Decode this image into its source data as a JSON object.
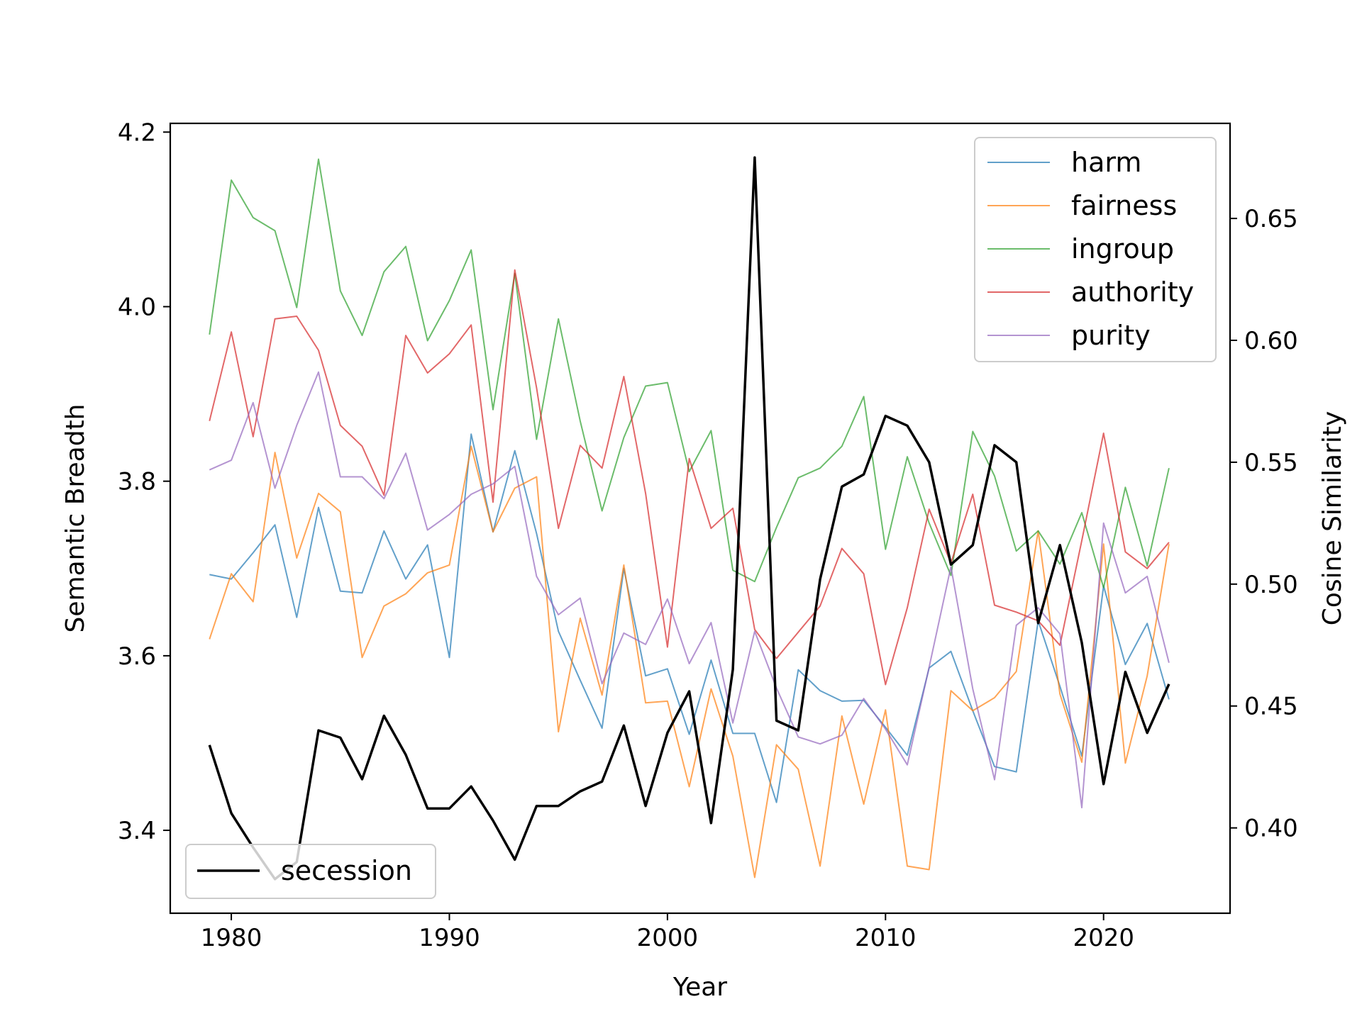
{
  "chart_data": {
    "type": "line",
    "title": "",
    "xlabel": "Year",
    "ylabel_left": "Semantic Breadth",
    "ylabel_right": "Cosine Similarity",
    "xlim": [
      1977.2,
      2025.8
    ],
    "ylim_left": [
      3.305,
      4.21
    ],
    "ylim_right": [
      0.365,
      0.689
    ],
    "xticks": [
      1980,
      1990,
      2000,
      2010,
      2020
    ],
    "yticks_left": [
      3.4,
      3.6,
      3.8,
      4.0,
      4.2
    ],
    "yticks_left_labels": [
      "3.4",
      "3.6",
      "3.8",
      "4.0",
      "4.2"
    ],
    "yticks_right": [
      0.4,
      0.45,
      0.5,
      0.55,
      0.6,
      0.65
    ],
    "yticks_right_labels": [
      "0.40",
      "0.45",
      "0.50",
      "0.55",
      "0.60",
      "0.65"
    ],
    "grid": false,
    "x": [
      1979,
      1980,
      1981,
      1982,
      1983,
      1984,
      1985,
      1986,
      1987,
      1988,
      1989,
      1990,
      1991,
      1992,
      1993,
      1994,
      1995,
      1996,
      1997,
      1998,
      1999,
      2000,
      2001,
      2002,
      2003,
      2004,
      2005,
      2006,
      2007,
      2008,
      2009,
      2010,
      2011,
      2012,
      2013,
      2014,
      2015,
      2016,
      2017,
      2018,
      2019,
      2020,
      2021,
      2022,
      2023
    ],
    "series_left": [
      {
        "name": "harm",
        "color": "#1f77b4",
        "values": [
          3.693,
          3.688,
          3.718,
          3.75,
          3.644,
          3.77,
          3.674,
          3.672,
          3.743,
          3.688,
          3.727,
          3.598,
          3.854,
          3.742,
          3.835,
          3.74,
          3.628,
          3.572,
          3.517,
          3.7,
          3.577,
          3.585,
          3.51,
          3.595,
          3.511,
          3.511,
          3.432,
          3.584,
          3.56,
          3.548,
          3.549,
          3.518,
          3.486,
          3.586,
          3.605,
          3.537,
          3.473,
          3.467,
          3.64,
          3.565,
          3.485,
          3.68,
          3.59,
          3.637,
          3.55
        ]
      },
      {
        "name": "fairness",
        "color": "#ff7f0e",
        "values": [
          3.619,
          3.694,
          3.662,
          3.833,
          3.712,
          3.786,
          3.765,
          3.598,
          3.657,
          3.671,
          3.695,
          3.704,
          3.84,
          3.742,
          3.792,
          3.805,
          3.513,
          3.643,
          3.555,
          3.704,
          3.546,
          3.548,
          3.45,
          3.562,
          3.485,
          3.346,
          3.498,
          3.47,
          3.359,
          3.531,
          3.43,
          3.538,
          3.359,
          3.355,
          3.56,
          3.537,
          3.552,
          3.582,
          3.743,
          3.556,
          3.478,
          3.728,
          3.477,
          3.577,
          3.728
        ]
      },
      {
        "name": "ingroup",
        "color": "#2ca02c",
        "values": [
          3.968,
          4.145,
          4.102,
          4.087,
          3.999,
          4.169,
          4.018,
          3.967,
          4.04,
          4.069,
          3.961,
          4.007,
          4.065,
          3.882,
          4.038,
          3.848,
          3.986,
          3.869,
          3.766,
          3.85,
          3.909,
          3.913,
          3.811,
          3.858,
          3.698,
          3.685,
          3.747,
          3.804,
          3.815,
          3.84,
          3.897,
          3.722,
          3.828,
          3.752,
          3.692,
          3.857,
          3.806,
          3.72,
          3.743,
          3.705,
          3.764,
          3.678,
          3.793,
          3.703,
          3.815
        ]
      },
      {
        "name": "authority",
        "color": "#d62728",
        "values": [
          3.869,
          3.971,
          3.851,
          3.986,
          3.989,
          3.95,
          3.864,
          3.84,
          3.784,
          3.967,
          3.924,
          3.946,
          3.979,
          3.776,
          4.042,
          3.907,
          3.746,
          3.841,
          3.815,
          3.92,
          3.786,
          3.61,
          3.826,
          3.746,
          3.769,
          3.63,
          3.597,
          3.627,
          3.657,
          3.723,
          3.694,
          3.567,
          3.655,
          3.768,
          3.706,
          3.785,
          3.658,
          3.65,
          3.64,
          3.612,
          3.732,
          3.855,
          3.719,
          3.7,
          3.73
        ]
      },
      {
        "name": "purity",
        "color": "#9467bd",
        "values": [
          3.813,
          3.824,
          3.89,
          3.792,
          3.864,
          3.925,
          3.805,
          3.805,
          3.78,
          3.832,
          3.744,
          3.762,
          3.785,
          3.797,
          3.817,
          3.691,
          3.647,
          3.666,
          3.568,
          3.626,
          3.613,
          3.665,
          3.591,
          3.638,
          3.523,
          3.628,
          3.563,
          3.507,
          3.499,
          3.509,
          3.551,
          3.516,
          3.475,
          3.587,
          3.702,
          3.562,
          3.458,
          3.635,
          3.655,
          3.625,
          3.426,
          3.752,
          3.672,
          3.691,
          3.592
        ]
      }
    ],
    "series_right": [
      {
        "name": "secession",
        "color": "#000000",
        "values": [
          0.434,
          0.406,
          0.392,
          0.379,
          0.386,
          0.44,
          0.437,
          0.42,
          0.446,
          0.43,
          0.408,
          0.408,
          0.417,
          0.403,
          0.387,
          0.409,
          0.409,
          0.415,
          0.419,
          0.442,
          0.409,
          0.439,
          0.456,
          0.402,
          0.465,
          0.675,
          0.444,
          0.44,
          0.502,
          0.54,
          0.545,
          0.569,
          0.565,
          0.55,
          0.508,
          0.516,
          0.557,
          0.55,
          0.484,
          0.516,
          0.476,
          0.418,
          0.464,
          0.439,
          0.459
        ]
      }
    ],
    "legend_upper": {
      "placement": "top-right",
      "entries": [
        "harm",
        "fairness",
        "ingroup",
        "authority",
        "purity"
      ]
    },
    "legend_lower": {
      "placement": "bottom-left",
      "entries": [
        "secession"
      ]
    }
  }
}
